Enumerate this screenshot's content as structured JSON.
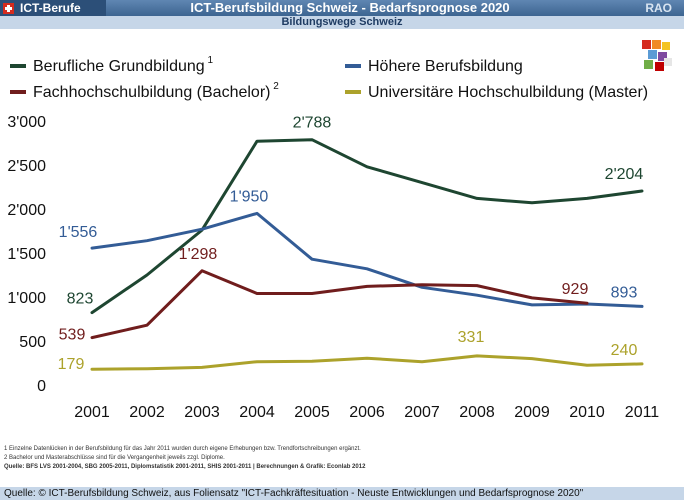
{
  "header": {
    "brand": "ICT-Berufe",
    "title": "ICT-Berufsbildung Schweiz - Bedarfsprognose 2020",
    "right_label": "RAO",
    "subtitle": "Bildungswege Schweiz"
  },
  "colors": {
    "grundbildung": "#1e4631",
    "hoehere": "#335c96",
    "fachhochschule": "#701d1d",
    "universitaer": "#aca22b",
    "axis_text": "#111111",
    "header_bar": "#4a72a0",
    "sub_bar": "#c6d6e8"
  },
  "chart_data": {
    "type": "line",
    "x": [
      "2001",
      "2002",
      "2003",
      "2004",
      "2005",
      "2006",
      "2007",
      "2008",
      "2009",
      "2010",
      "2011"
    ],
    "ylim": [
      0,
      3000
    ],
    "yticks": [
      "0",
      "500",
      "1'000",
      "1'500",
      "2'000",
      "2'500",
      "3'000"
    ],
    "ytick_values": [
      0,
      500,
      1000,
      1500,
      2000,
      2500,
      3000
    ],
    "grid": false,
    "legend_placement": "top",
    "series": [
      {
        "key": "grundbildung",
        "name": "Berufliche Grundbildung",
        "sup": "1",
        "values": [
          823,
          1250,
          1760,
          2770,
          2788,
          2480,
          2300,
          2120,
          2070,
          2120,
          2204
        ]
      },
      {
        "key": "hoehere",
        "name": "Höhere Berufsbildung",
        "sup": "",
        "values": [
          1556,
          1640,
          1770,
          1950,
          1430,
          1320,
          1110,
          1020,
          910,
          920,
          893
        ]
      },
      {
        "key": "fachhochschule",
        "name": "Fachhochschulbildung (Bachelor)",
        "sup": "2",
        "values": [
          539,
          680,
          1298,
          1040,
          1040,
          1120,
          1140,
          1130,
          990,
          929,
          null
        ]
      },
      {
        "key": "universitaer",
        "name": "Universitäre Hochschulbildung (Master)",
        "sup": "",
        "values": [
          179,
          185,
          200,
          265,
          270,
          305,
          265,
          331,
          300,
          225,
          240
        ]
      }
    ],
    "data_labels": [
      {
        "series": "grundbildung",
        "index": 0,
        "text": "823"
      },
      {
        "series": "grundbildung",
        "index": 4,
        "text": "2'788"
      },
      {
        "series": "grundbildung",
        "index": 10,
        "text": "2'204"
      },
      {
        "series": "hoehere",
        "index": 0,
        "text": "1'556"
      },
      {
        "series": "hoehere",
        "index": 3,
        "text": "1'950"
      },
      {
        "series": "hoehere",
        "index": 10,
        "text": "893"
      },
      {
        "series": "fachhochschule",
        "index": 0,
        "text": "539"
      },
      {
        "series": "fachhochschule",
        "index": 2,
        "text": "1'298"
      },
      {
        "series": "fachhochschule",
        "index": 9,
        "text": "929"
      },
      {
        "series": "universitaer",
        "index": 0,
        "text": "179"
      },
      {
        "series": "universitaer",
        "index": 7,
        "text": "331"
      },
      {
        "series": "universitaer",
        "index": 10,
        "text": "240"
      }
    ]
  },
  "footnotes": {
    "note1": "1 Einzelne Datenlücken in der Berufsbildung für das Jahr 2011 wurden durch eigene Erhebungen bzw. Trendfortschreibungen ergänzt.",
    "note2": "2 Bachelor und Masterabschlüsse sind für die Vergangenheit jeweils zzgl. Diplome.",
    "source": "Quelle: BFS LVS 2001-2004, SBG 2005-2011,  Diplomstatistik 2001-2011, SHIS 2001-2011 | Berechnungen & Grafik: Econlab 2012"
  },
  "credit": "Quelle: © ICT-Berufsbildung Schweiz, aus Foliensatz \"ICT-Fachkräftesituation - Neuste Entwicklungen und Bedarfsprognose 2020\""
}
